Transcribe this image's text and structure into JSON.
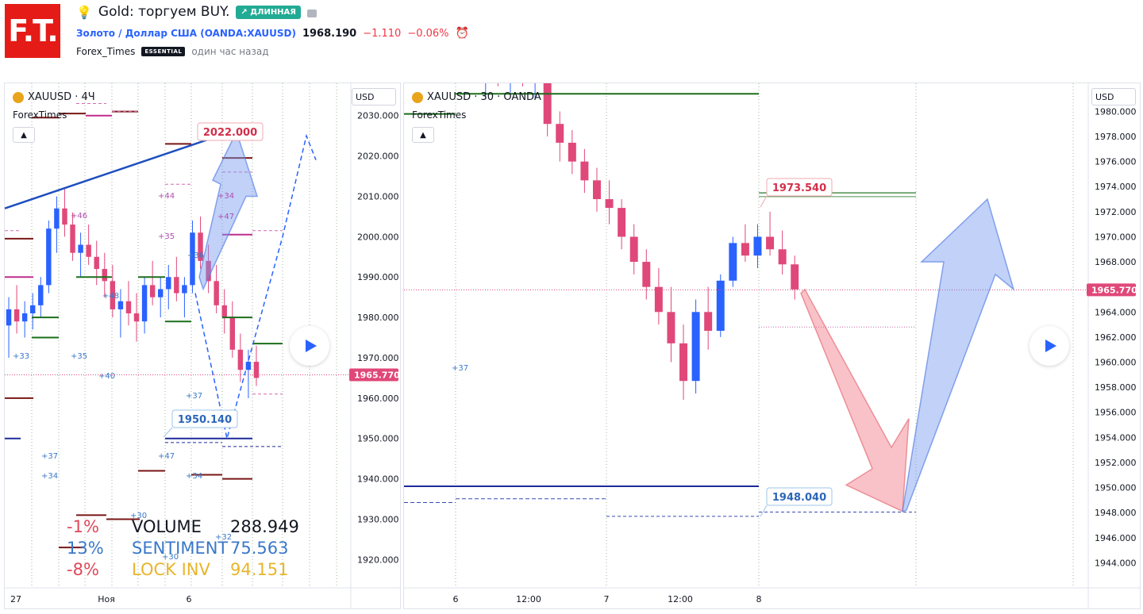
{
  "header": {
    "logo_text": "F.T.",
    "title": "Gold: торгуем BUY.",
    "badge": "↗ ДЛИННАЯ",
    "symbol_desc": "Золото / Доллар США",
    "symbol_code": "(OANDA:XAUUSD)",
    "price": "1968.190",
    "change": "−1.110",
    "change_pct": "−0.06%",
    "author": "Forex_Times",
    "author_badge": "ESSENTIAL",
    "time_ago": "один час назад"
  },
  "left_chart": {
    "label": "XAUUSD · 4Ч",
    "author": "ForexTimes",
    "currency": "USD",
    "price_tag": "1965.770",
    "annotation_high": "2022.000",
    "annotation_low": "1950.140",
    "x_labels": [
      "27",
      "Ноя",
      "6"
    ],
    "small_labels": [
      "+33",
      "+35",
      "+40",
      "+46",
      "+44",
      "+35",
      "+36",
      "+34",
      "+47",
      "+48",
      "+37",
      "+37",
      "+34",
      "+47",
      "+34",
      "+30",
      "+32",
      "+30"
    ],
    "stats": {
      "row1_pct": "-1%",
      "row1_name": "VOLUME",
      "row1_val": "288.949",
      "row2_pct": "13%",
      "row2_name": "SENTIMENT",
      "row2_val": "75.563",
      "row3_pct": "-8%",
      "row3_name": "LOCK INV",
      "row3_val": "94.151"
    }
  },
  "right_chart": {
    "label": "XAUUSD · 30 · OANDA",
    "author": "ForexTimes",
    "currency": "USD",
    "price_tag": "1965.770",
    "annotation_high": "1973.540",
    "annotation_low": "1948.040",
    "small_label": "+37",
    "x_labels": [
      "6",
      "12:00",
      "7",
      "12:00",
      "8"
    ]
  },
  "colors": {
    "up": "#2962ff",
    "down": "#e0487a",
    "price_tag": "#e0487a",
    "trend_blue": "#1e4fbf",
    "level_green": "#1b6e1b",
    "level_maroon": "#7a1616"
  },
  "chart_data": [
    {
      "type": "candlestick",
      "title": "XAUUSD · 4Ч",
      "ylim": [
        1913,
        2038
      ],
      "y_ticks": [
        1920,
        1930,
        1940,
        1950,
        1960,
        1970,
        1980,
        1990,
        2000,
        2010,
        2020,
        2030
      ],
      "candles": [
        [
          1978,
          1985,
          1970,
          1982
        ],
        [
          1982,
          1988,
          1976,
          1979
        ],
        [
          1979,
          1984,
          1975,
          1981
        ],
        [
          1981,
          1986,
          1977,
          1983
        ],
        [
          1983,
          1990,
          1980,
          1988
        ],
        [
          1988,
          2004,
          1986,
          2002
        ],
        [
          2002,
          2010,
          1996,
          2007
        ],
        [
          2007,
          2012,
          2000,
          2003
        ],
        [
          2003,
          2006,
          1994,
          1996
        ],
        [
          1996,
          2001,
          1990,
          1998
        ],
        [
          1998,
          2003,
          1993,
          1995
        ],
        [
          1995,
          1999,
          1988,
          1992
        ],
        [
          1992,
          1996,
          1985,
          1989
        ],
        [
          1989,
          1993,
          1980,
          1982
        ],
        [
          1982,
          1987,
          1975,
          1984
        ],
        [
          1984,
          1989,
          1978,
          1981
        ],
        [
          1981,
          1986,
          1974,
          1979
        ],
        [
          1979,
          1990,
          1976,
          1988
        ],
        [
          1988,
          1994,
          1983,
          1985
        ],
        [
          1985,
          1990,
          1980,
          1987
        ],
        [
          1987,
          1993,
          1982,
          1990
        ],
        [
          1990,
          1995,
          1984,
          1986
        ],
        [
          1986,
          1990,
          1980,
          1988
        ],
        [
          1988,
          2004,
          1986,
          2001
        ],
        [
          2001,
          2005,
          1992,
          1994
        ],
        [
          1994,
          1998,
          1986,
          1989
        ],
        [
          1989,
          1993,
          1981,
          1983
        ],
        [
          1983,
          1987,
          1976,
          1980
        ],
        [
          1980,
          1984,
          1970,
          1972
        ],
        [
          1972,
          1976,
          1964,
          1967
        ],
        [
          1967,
          1972,
          1960,
          1969
        ],
        [
          1969,
          1973,
          1963,
          1965
        ]
      ]
    },
    {
      "type": "candlestick",
      "title": "XAUUSD · 30 · OANDA",
      "ylim": [
        1942,
        1983
      ],
      "y_ticks": [
        1944,
        1946,
        1948,
        1950,
        1952,
        1954,
        1956,
        1958,
        1960,
        1962,
        1964,
        1966,
        1968,
        1970,
        1972,
        1974,
        1976,
        1978,
        1980
      ],
      "candles": [
        [
          1983,
          1984,
          1981,
          1983.5
        ],
        [
          1983.5,
          1984,
          1982,
          1982.5
        ],
        [
          1982.5,
          1984,
          1981.5,
          1983.5
        ],
        [
          1983.5,
          1984,
          1982,
          1982.8
        ],
        [
          1982.8,
          1984,
          1981,
          1983.2
        ],
        [
          1983.2,
          1984,
          1978,
          1979
        ],
        [
          1979,
          1980,
          1976,
          1977.5
        ],
        [
          1977.5,
          1978.5,
          1975,
          1976
        ],
        [
          1976,
          1977,
          1973.5,
          1974.5
        ],
        [
          1974.5,
          1975.5,
          1972,
          1973
        ],
        [
          1973,
          1974.5,
          1971,
          1972.3
        ],
        [
          1972.3,
          1973,
          1969,
          1970
        ],
        [
          1970,
          1971,
          1967,
          1968
        ],
        [
          1968,
          1969,
          1965,
          1966
        ],
        [
          1966,
          1967.5,
          1963,
          1964
        ],
        [
          1964,
          1966,
          1960,
          1961.5
        ],
        [
          1961.5,
          1963,
          1957,
          1958.5
        ],
        [
          1958.5,
          1965,
          1957.5,
          1964
        ],
        [
          1964,
          1966,
          1961,
          1962.5
        ],
        [
          1962.5,
          1967,
          1962,
          1966.5
        ],
        [
          1966.5,
          1970,
          1966,
          1969.5
        ],
        [
          1969.5,
          1971,
          1968,
          1968.5
        ],
        [
          1968.5,
          1971,
          1967.5,
          1970
        ],
        [
          1970,
          1972,
          1968.5,
          1969
        ],
        [
          1969,
          1970.5,
          1967,
          1967.8
        ],
        [
          1967.8,
          1968.5,
          1965,
          1965.8
        ]
      ],
      "levels": [
        1973.5,
        1948.04,
        1965.77
      ]
    }
  ]
}
